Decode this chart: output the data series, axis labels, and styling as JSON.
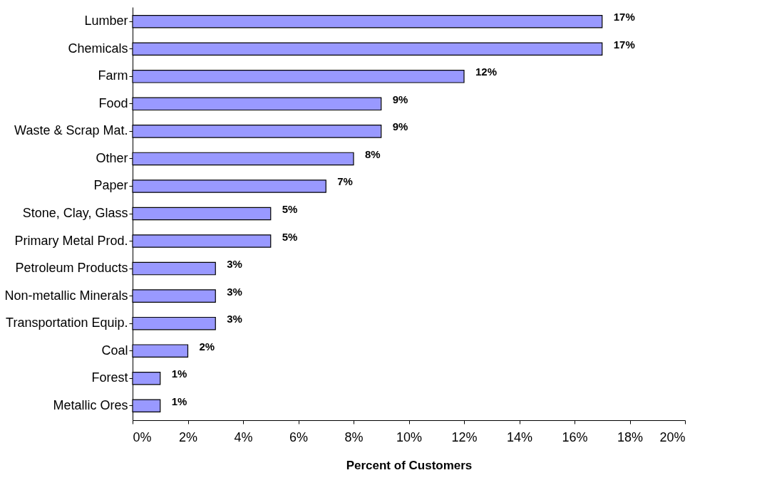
{
  "chart_data": {
    "type": "bar",
    "orientation": "horizontal",
    "xlabel": "Percent of Customers",
    "categories": [
      "Lumber",
      "Chemicals",
      "Farm",
      "Food",
      "Waste & Scrap Mat.",
      "Other",
      "Paper",
      "Stone, Clay, Glass",
      "Primary Metal Prod.",
      "Petroleum Products",
      "Non-metallic Minerals",
      "Transportation Equip.",
      "Coal",
      "Forest",
      "Metallic Ores"
    ],
    "values": [
      17,
      17,
      12,
      9,
      9,
      8,
      7,
      5,
      5,
      3,
      3,
      3,
      2,
      1,
      1
    ],
    "value_labels": [
      "17%",
      "17%",
      "12%",
      "9%",
      "9%",
      "8%",
      "7%",
      "5%",
      "5%",
      "3%",
      "3%",
      "3%",
      "2%",
      "1%",
      "1%"
    ],
    "color": "#9999ff",
    "xlim": [
      0,
      20
    ],
    "xticks": [
      {
        "value": 0,
        "label": "0%"
      },
      {
        "value": 2,
        "label": "2%"
      },
      {
        "value": 4,
        "label": "4%"
      },
      {
        "value": 6,
        "label": "6%"
      },
      {
        "value": 8,
        "label": "8%"
      },
      {
        "value": 10,
        "label": "10%"
      },
      {
        "value": 12,
        "label": "12%"
      },
      {
        "value": 14,
        "label": "14%"
      },
      {
        "value": 16,
        "label": "16%"
      },
      {
        "value": 18,
        "label": "18%"
      },
      {
        "value": 20,
        "label": "20%"
      }
    ],
    "grid": false
  }
}
